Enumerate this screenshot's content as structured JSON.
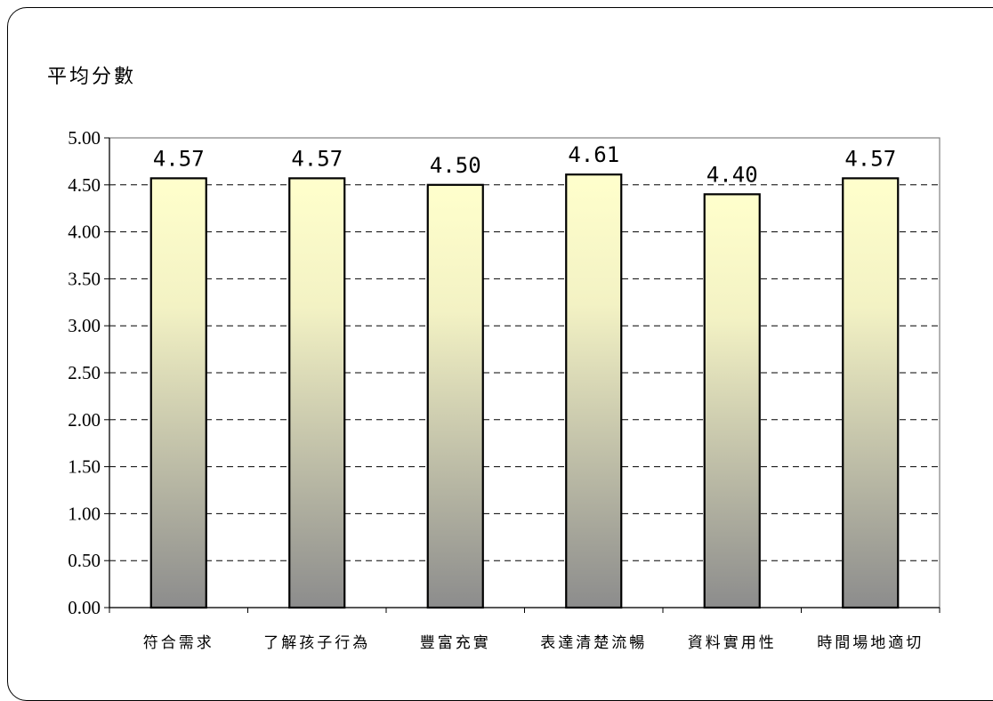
{
  "chart_data": {
    "type": "bar",
    "title": "",
    "ylabel": "平均分數",
    "xlabel": "",
    "categories": [
      "符合需求",
      "了解孩子行為",
      "豐富充實",
      "表達清楚流暢",
      "資料實用性",
      "時間場地適切"
    ],
    "values": [
      4.57,
      4.57,
      4.5,
      4.61,
      4.4,
      4.57
    ],
    "data_labels": [
      "4.57",
      "4.57",
      "4.50",
      "4.61",
      "4.40",
      "4.57"
    ],
    "ylim": [
      0,
      5
    ],
    "yticks": [
      "0.00",
      "0.50",
      "1.00",
      "1.50",
      "2.00",
      "2.50",
      "3.00",
      "3.50",
      "4.00",
      "4.50",
      "5.00"
    ],
    "grid": true,
    "legend": "none",
    "colors": {
      "bar_top": "#ffffcc",
      "bar_bottom": "#8c8c8c",
      "bar_outline": "#000000",
      "grid": "#000000",
      "axis": "#808080"
    }
  }
}
